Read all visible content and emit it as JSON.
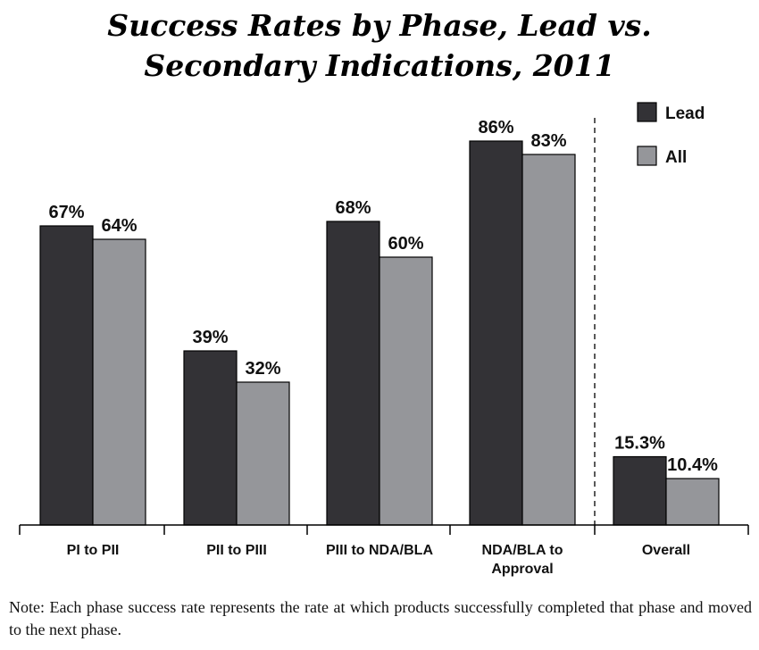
{
  "chart_data": {
    "type": "bar",
    "title_lines": [
      "Success Rates by Phase, Lead vs.",
      "Secondary Indications, 2011"
    ],
    "categories": [
      [
        "PI to PII"
      ],
      [
        "PII to PIII"
      ],
      [
        "PIII to NDA/BLA"
      ],
      [
        "NDA/BLA to",
        "Approval"
      ],
      [
        "Overall"
      ]
    ],
    "series": [
      {
        "name": "Lead",
        "color": "#333236",
        "values": [
          67,
          39,
          68,
          86,
          15.3
        ],
        "labels": [
          "67%",
          "39%",
          "68%",
          "86%",
          "15.3%"
        ]
      },
      {
        "name": "All",
        "color": "#95969a",
        "values": [
          64,
          32,
          60,
          83,
          10.4
        ],
        "labels": [
          "64%",
          "32%",
          "60%",
          "83%",
          "10.4%"
        ]
      }
    ],
    "ylim": [
      0,
      100
    ],
    "xlabel": "",
    "ylabel": "",
    "grid": false,
    "legend_position": "top-right",
    "separator_before_category": 4
  },
  "note": "Note: Each phase success rate represents the rate at which products successfully completed that phase and moved to the next phase."
}
